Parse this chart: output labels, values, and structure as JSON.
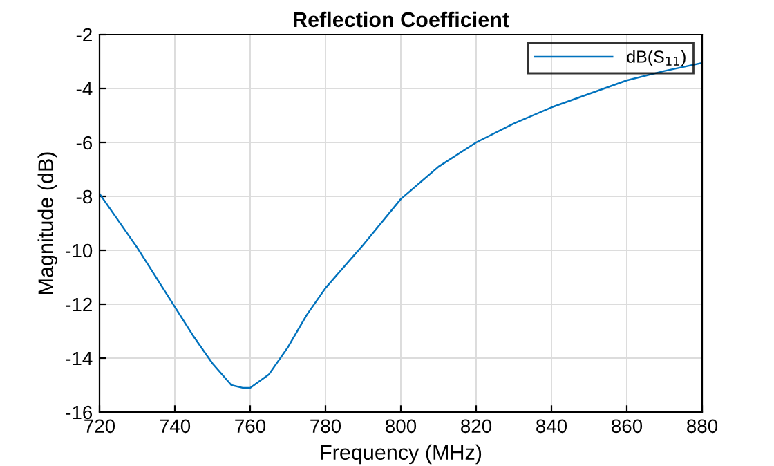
{
  "chart_data": {
    "type": "line",
    "title": "Reflection Coefficient",
    "xlabel": "Frequency (MHz)",
    "ylabel": "Magnitude (dB)",
    "x": [
      720,
      730,
      740,
      745,
      750,
      755,
      758,
      760,
      765,
      770,
      775,
      780,
      790,
      800,
      810,
      820,
      830,
      840,
      850,
      860,
      870,
      880
    ],
    "series": [
      {
        "name": "dB(S$_{11}$)",
        "color": "#0072bd",
        "values": [
          -7.9,
          -9.9,
          -12.1,
          -13.2,
          -14.2,
          -15.0,
          -15.1,
          -15.1,
          -14.6,
          -13.6,
          -12.4,
          -11.4,
          -9.8,
          -8.1,
          -6.9,
          -6.0,
          -5.3,
          -4.7,
          -4.2,
          -3.7,
          -3.35,
          -3.05
        ]
      }
    ],
    "xlim": [
      720,
      880
    ],
    "xticks": [
      720,
      740,
      760,
      780,
      800,
      820,
      840,
      860,
      880
    ],
    "ylim": [
      -16,
      -2
    ],
    "yticks": [
      -16,
      -14,
      -12,
      -10,
      -8,
      -6,
      -4,
      -2
    ],
    "grid": true,
    "legend": "top right",
    "marker": "none",
    "line_style": "solid"
  }
}
